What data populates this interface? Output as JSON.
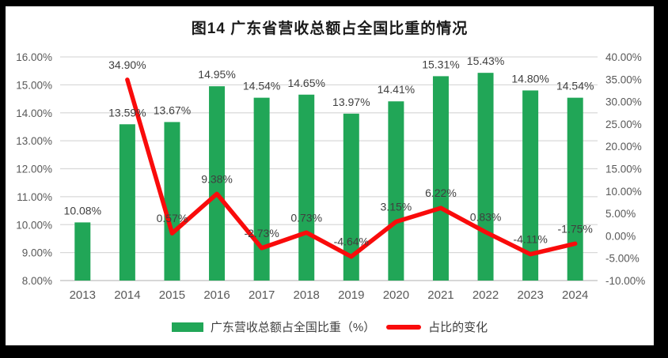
{
  "title": "图14  广东省营收总额占全国比重的情况",
  "colors": {
    "bar": "#21a657",
    "line": "#f90b0b",
    "gridline": "#d9d9d9",
    "axis_line": "#bfbfbf",
    "axis_text": "#595959",
    "data_label_text": "#3f3f3f",
    "title_text": "#1a1a1a",
    "background": "#ffffff",
    "frame": "#000000"
  },
  "chart_data": {
    "type": "bar",
    "subtype": "combo-bar-line",
    "title": "图14  广东省营收总额占全国比重的情况",
    "categories": [
      "2013",
      "2014",
      "2015",
      "2016",
      "2017",
      "2018",
      "2019",
      "2020",
      "2021",
      "2022",
      "2023",
      "2024"
    ],
    "series": [
      {
        "name": "广东营收总额占全国比重（%）",
        "type": "bar",
        "axis": "left",
        "color": "#21a657",
        "values": [
          10.08,
          13.59,
          13.67,
          14.95,
          14.54,
          14.65,
          13.97,
          14.41,
          15.31,
          15.43,
          14.8,
          14.54
        ],
        "labels": [
          "10.08%",
          "13.59%",
          "13.67%",
          "14.95%",
          "14.54%",
          "14.65%",
          "13.97%",
          "14.41%",
          "15.31%",
          "15.43%",
          "14.80%",
          "14.54%"
        ]
      },
      {
        "name": "占比的变化",
        "type": "line",
        "axis": "right",
        "color": "#f90b0b",
        "values": [
          null,
          34.9,
          0.57,
          9.38,
          -2.73,
          0.73,
          -4.64,
          3.15,
          6.22,
          0.83,
          -4.11,
          -1.75
        ],
        "labels": [
          null,
          "34.90%",
          "0.57%",
          "9.38%",
          "-2.73%",
          "0.73%",
          "-4.64%",
          "3.15%",
          "6.22%",
          "0.83%",
          "-4.11%",
          "-1.75%"
        ]
      }
    ],
    "left_axis": {
      "min": 8,
      "max": 16,
      "step": 1,
      "tick_values": [
        16,
        15,
        14,
        13,
        12,
        11,
        10,
        9,
        8
      ],
      "tick_labels": [
        "16.00%",
        "15.00%",
        "14.00%",
        "13.00%",
        "12.00%",
        "11.00%",
        "10.00%",
        "9.00%",
        "8.00%"
      ]
    },
    "right_axis": {
      "min": -10,
      "max": 40,
      "step": 5,
      "tick_values": [
        40,
        35,
        30,
        25,
        20,
        15,
        10,
        5,
        0,
        -5,
        -10
      ],
      "tick_labels": [
        "40.00%",
        "35.00%",
        "30.00%",
        "25.00%",
        "20.00%",
        "15.00%",
        "10.00%",
        "5.00%",
        "0.00%",
        "-5.00%",
        "-10.00%"
      ]
    },
    "grid": true,
    "legend_position": "bottom"
  }
}
